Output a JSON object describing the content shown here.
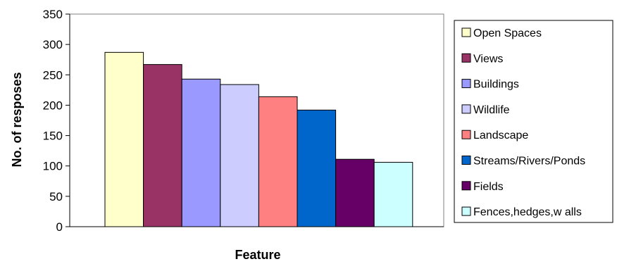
{
  "chart_data": {
    "type": "bar",
    "title": "",
    "xlabel": "Feature",
    "ylabel": "No. of resposes",
    "ylim": [
      0,
      350
    ],
    "yticks": [
      0,
      50,
      100,
      150,
      200,
      250,
      300,
      350
    ],
    "grid": false,
    "legend_position": "right",
    "series": [
      {
        "name": "Open Spaces",
        "value": 287,
        "color": "#FFFFCC"
      },
      {
        "name": "Views",
        "value": 267,
        "color": "#993366"
      },
      {
        "name": "Buildings",
        "value": 243,
        "color": "#9999FF"
      },
      {
        "name": "Wildlife",
        "value": 234,
        "color": "#CCCCFF"
      },
      {
        "name": "Landscape",
        "value": 214,
        "color": "#FF8080"
      },
      {
        "name": "Streams/Rivers/Ponds",
        "value": 192,
        "color": "#0066CC"
      },
      {
        "name": "Fields",
        "value": 111,
        "color": "#660066"
      },
      {
        "name": "Fences,hedges,w alls",
        "value": 106,
        "color": "#CCFFFF"
      }
    ]
  }
}
